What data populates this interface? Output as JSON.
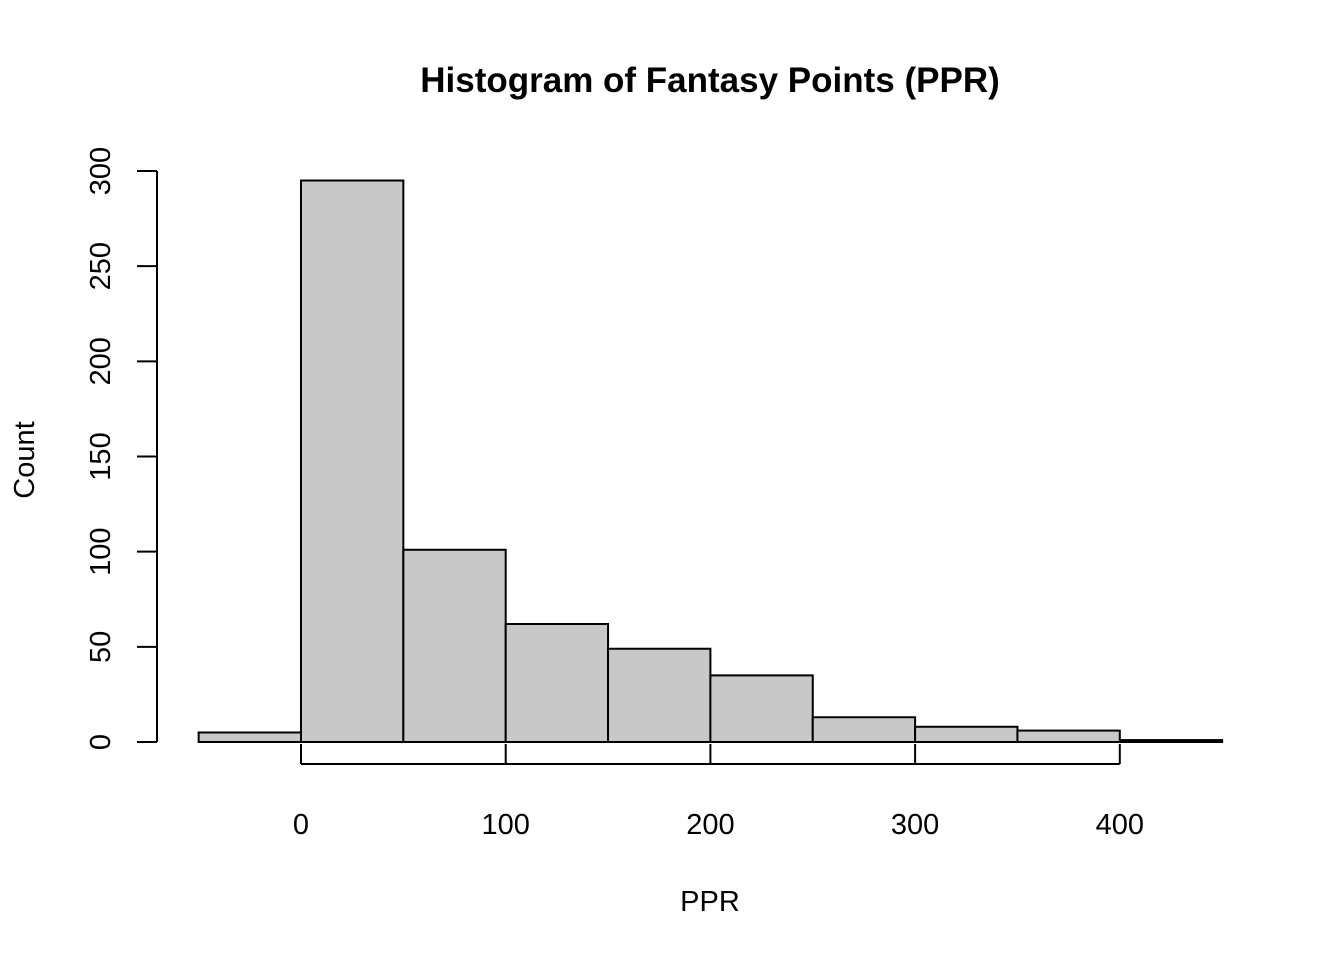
{
  "chart_data": {
    "type": "bar",
    "title": "Histogram of Fantasy Points (PPR)",
    "xlabel": "PPR",
    "ylabel": "Count",
    "bins": [
      {
        "start": -50,
        "end": 0,
        "count": 5
      },
      {
        "start": 0,
        "end": 50,
        "count": 295
      },
      {
        "start": 50,
        "end": 100,
        "count": 101
      },
      {
        "start": 100,
        "end": 150,
        "count": 62
      },
      {
        "start": 150,
        "end": 200,
        "count": 49
      },
      {
        "start": 200,
        "end": 250,
        "count": 35
      },
      {
        "start": 250,
        "end": 300,
        "count": 13
      },
      {
        "start": 300,
        "end": 350,
        "count": 8
      },
      {
        "start": 350,
        "end": 400,
        "count": 6
      },
      {
        "start": 400,
        "end": 450,
        "count": 1
      }
    ],
    "xlim": [
      -50,
      450
    ],
    "ylim": [
      0,
      300
    ],
    "x_ticks": [
      0,
      100,
      200,
      300,
      400
    ],
    "y_ticks": [
      0,
      50,
      100,
      150,
      200,
      250,
      300
    ],
    "bar_color": "#c8c8c8",
    "grid": false,
    "legend": "none"
  }
}
